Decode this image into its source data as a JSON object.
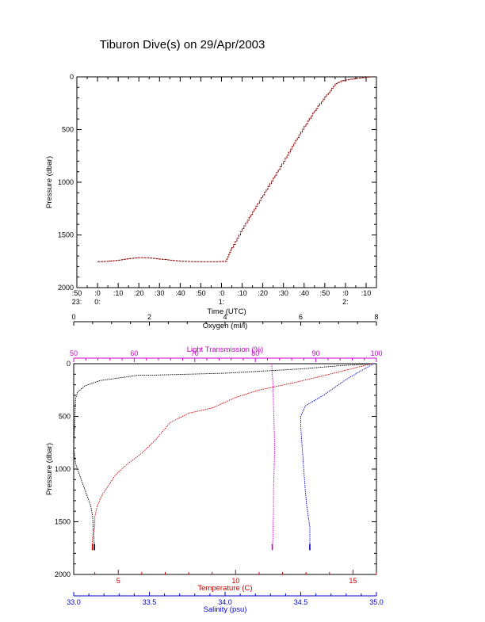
{
  "title": "Tiburon Dive(s) on 29/Apr/2003",
  "colors": {
    "axis": "#000000",
    "temperature": "#cc0000",
    "salinity": "#0000cc",
    "light": "#cc00cc",
    "oxygen": "#000000",
    "track": "#8b0000"
  },
  "chart_data": [
    {
      "type": "line",
      "name": "time-pressure",
      "title": "Tiburon Dive(s) on 29/Apr/2003",
      "xlabel": "Time (UTC)",
      "ylabel": "Pressure (dbar)",
      "ylim": [
        2000,
        0
      ],
      "xlim_minutes": [
        -10,
        135
      ],
      "x_ticks": [
        {
          "m": -10,
          "top": ":50",
          "bottom": "23:"
        },
        {
          "m": 0,
          "top": ":0",
          "bottom": "0:"
        },
        {
          "m": 10,
          "top": ":10",
          "bottom": ""
        },
        {
          "m": 20,
          "top": ":20",
          "bottom": ""
        },
        {
          "m": 30,
          "top": ":30",
          "bottom": ""
        },
        {
          "m": 40,
          "top": ":40",
          "bottom": ""
        },
        {
          "m": 50,
          "top": ":50",
          "bottom": ""
        },
        {
          "m": 60,
          "top": ":0",
          "bottom": "1:"
        },
        {
          "m": 70,
          "top": ":10",
          "bottom": ""
        },
        {
          "m": 80,
          "top": ":20",
          "bottom": ""
        },
        {
          "m": 90,
          "top": ":30",
          "bottom": ""
        },
        {
          "m": 100,
          "top": ":40",
          "bottom": ""
        },
        {
          "m": 110,
          "top": ":50",
          "bottom": ""
        },
        {
          "m": 120,
          "top": ":0",
          "bottom": "2:"
        },
        {
          "m": 130,
          "top": ":10",
          "bottom": ""
        }
      ],
      "y_ticks": [
        "0",
        "500",
        "1000",
        "1500",
        "2000"
      ],
      "series": [
        {
          "x": [
            0,
            5,
            10,
            15,
            20,
            25,
            30,
            40,
            50,
            57,
            62,
            65,
            70,
            75,
            80,
            85,
            90,
            95,
            100,
            105,
            110,
            115,
            118,
            120,
            125,
            130,
            132
          ],
          "y": [
            1755,
            1750,
            1740,
            1725,
            1715,
            1718,
            1730,
            1750,
            1755,
            1755,
            1750,
            1620,
            1440,
            1280,
            1120,
            960,
            800,
            630,
            470,
            320,
            190,
            70,
            40,
            30,
            15,
            5,
            0
          ]
        }
      ]
    },
    {
      "type": "line",
      "name": "profile",
      "ylabel": "Pressure (dbar)",
      "ylim": [
        2000,
        0
      ],
      "y_ticks": [
        "0",
        "500",
        "1000",
        "1500",
        "2000"
      ],
      "axes": {
        "oxygen": {
          "label": "Oxygen (ml/l)",
          "range": [
            0,
            8
          ],
          "ticks": [
            "0",
            "2",
            "4",
            "6",
            "8"
          ]
        },
        "light": {
          "label": "Light Transmission (%)",
          "range": [
            50,
            100
          ],
          "ticks": [
            "50",
            "60",
            "70",
            "80",
            "90",
            "100"
          ]
        },
        "temperature": {
          "label": "Temperature (C)",
          "range": [
            3.1,
            16.0
          ],
          "ticks": [
            {
              "v": 5,
              "t": "5"
            },
            {
              "v": 10,
              "t": "10"
            },
            {
              "v": 15,
              "t": "15"
            }
          ]
        },
        "salinity": {
          "label": "Salinity (psu)",
          "range": [
            33.0,
            35.0
          ],
          "ticks": [
            "33.0",
            "33.5",
            "34.0",
            "34.5",
            "35.0"
          ]
        }
      },
      "series": [
        {
          "name": "oxygen",
          "x": [
            7.9,
            7.0,
            6.0,
            5.0,
            4.0,
            3.0,
            2.0,
            1.7,
            1.5,
            0.7,
            0.3,
            0.1,
            0.05,
            0.0,
            0.05,
            0.2,
            0.35,
            0.45,
            0.5,
            0.52,
            0.55
          ],
          "y": [
            0,
            20,
            50,
            70,
            90,
            100,
            110,
            110,
            120,
            160,
            210,
            270,
            330,
            800,
            950,
            1100,
            1250,
            1350,
            1450,
            1600,
            1740
          ]
        },
        {
          "name": "light",
          "x": [
            82.7,
            82.8,
            82.9,
            83.0,
            83.1,
            83.2,
            83.1,
            83.0,
            83.0,
            82.9,
            82.9,
            82.8
          ],
          "y": [
            0,
            100,
            200,
            400,
            600,
            800,
            1000,
            1200,
            1400,
            1550,
            1650,
            1740
          ]
        },
        {
          "name": "temperature",
          "x": [
            15.8,
            14.0,
            12.5,
            11.0,
            10.0,
            9.0,
            8.0,
            7.2,
            6.6,
            6.0,
            5.4,
            4.9,
            4.6,
            4.3,
            4.1,
            4.0,
            4.0,
            3.9,
            3.9
          ],
          "y": [
            0,
            100,
            180,
            250,
            320,
            420,
            470,
            560,
            720,
            850,
            950,
            1050,
            1150,
            1250,
            1350,
            1450,
            1550,
            1650,
            1740
          ]
        },
        {
          "name": "salinity",
          "x": [
            34.98,
            34.8,
            34.65,
            34.53,
            34.5,
            34.5,
            34.51,
            34.52,
            34.53,
            34.54,
            34.55,
            34.56,
            34.56,
            34.56
          ],
          "y": [
            0,
            150,
            300,
            400,
            500,
            600,
            800,
            1000,
            1200,
            1350,
            1450,
            1550,
            1650,
            1740
          ]
        }
      ]
    }
  ]
}
